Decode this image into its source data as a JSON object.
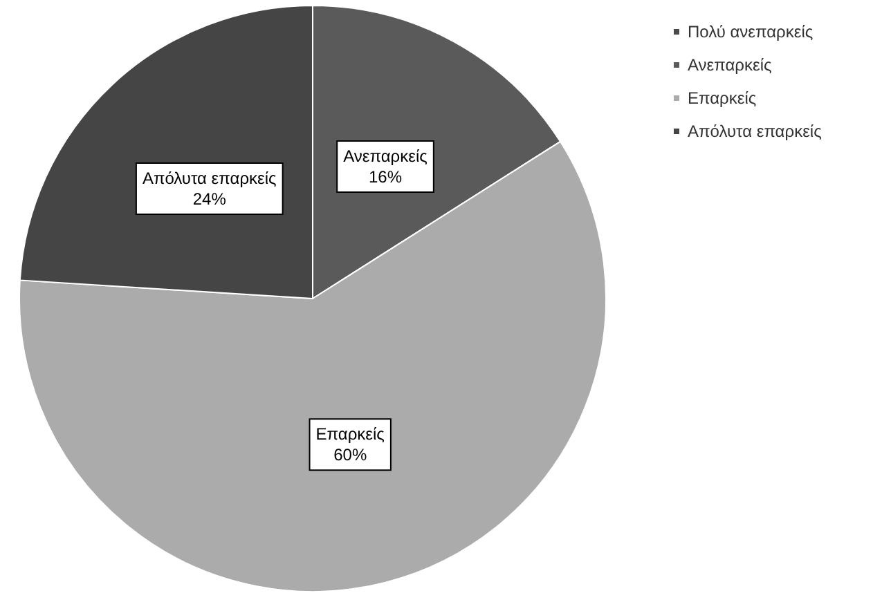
{
  "chart_data": {
    "type": "pie",
    "categories": [
      "Πολύ ανεπαρκείς",
      "Ανεπαρκείς",
      "Επαρκείς",
      "Απόλυτα επαρκείς"
    ],
    "values": [
      0,
      16,
      60,
      24
    ],
    "value_labels": [
      null,
      "16%",
      "60%",
      "24%"
    ],
    "colors": [
      "#4a4a4a",
      "#5a5a5a",
      "#ababab",
      "#454545"
    ],
    "legend": "top right"
  }
}
